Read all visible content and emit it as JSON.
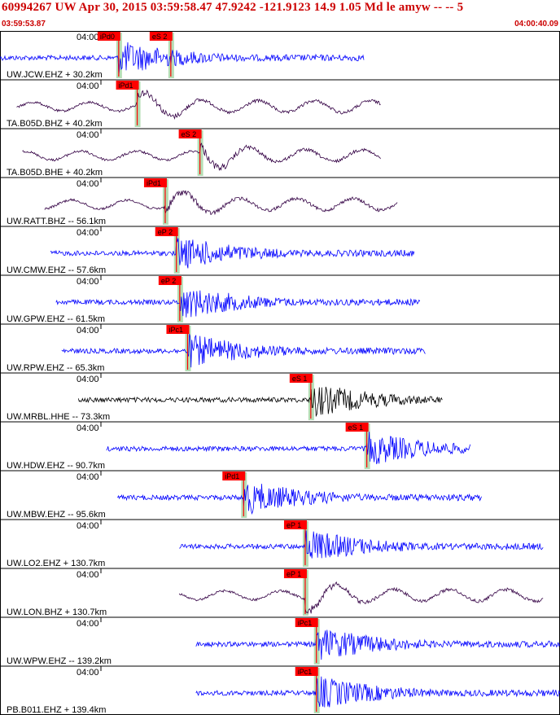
{
  "header": {
    "title": "60994267 UW Apr 30, 2015 03:59:58.47    47.9242 -121.9123 14.9 1.05 Md le amyw -- --    5",
    "start_time": "03:59:53.87",
    "end_time": "04:00:40.09"
  },
  "colors": {
    "header_red": "#cc0000",
    "pick_red": "#ff0000",
    "trace_blue": "#0000ff",
    "trace_purple": "#330044",
    "trace_black": "#000000",
    "window_green": "#a8d8a8"
  },
  "chart_data": {
    "type": "line",
    "title": "60994267 UW Apr 30, 2015 03:59:58.47    47.9242 -121.9123 14.9 1.05 Md le amyw -- --    5",
    "x_range": [
      "03:59:53.87",
      "04:00:40.09"
    ],
    "tick_label": "04:00",
    "traces": [
      {
        "label": "UW.JCW.EHZ + 30.2km",
        "color": "blue",
        "picks": [
          {
            "text": "iPd0",
            "t": 0.212
          },
          {
            "text": "eS 2",
            "t": 0.305
          }
        ],
        "data_span": [
          0.0,
          0.65
        ]
      },
      {
        "label": "TA.B05D.BHZ + 40.2km",
        "color": "purple",
        "picks": [
          {
            "text": "iPd1",
            "t": 0.245
          }
        ],
        "data_span": [
          0.03,
          0.68
        ]
      },
      {
        "label": "TA.B05D.BHE + 40.2km",
        "color": "purple",
        "picks": [
          {
            "text": "eS 2",
            "t": 0.357
          }
        ],
        "data_span": [
          0.04,
          0.68
        ]
      },
      {
        "label": "UW.RATT.BHZ -- 56.1km",
        "color": "purple",
        "picks": [
          {
            "text": "iPd1",
            "t": 0.295
          }
        ],
        "data_span": [
          0.08,
          0.71
        ]
      },
      {
        "label": "UW.CMW.EHZ -- 57.6km",
        "color": "blue",
        "picks": [
          {
            "text": "eP 2",
            "t": 0.315
          }
        ],
        "data_span": [
          0.09,
          0.74
        ]
      },
      {
        "label": "UW.GPW.EHZ -- 61.5km",
        "color": "blue",
        "picks": [
          {
            "text": "eP 2",
            "t": 0.321
          }
        ],
        "data_span": [
          0.1,
          0.75
        ]
      },
      {
        "label": "UW.RPW.EHZ -- 65.3km",
        "color": "blue",
        "picks": [
          {
            "text": "iPc1",
            "t": 0.335
          }
        ],
        "data_span": [
          0.11,
          0.76
        ]
      },
      {
        "label": "UW.MRBL.HHE -- 73.3km",
        "color": "black",
        "picks": [
          {
            "text": "eS 1",
            "t": 0.555
          }
        ],
        "data_span": [
          0.14,
          0.79
        ]
      },
      {
        "label": "UW.HDW.EHZ -- 90.7km",
        "color": "blue",
        "picks": [
          {
            "text": "eS 1",
            "t": 0.655
          }
        ],
        "data_span": [
          0.19,
          0.84
        ]
      },
      {
        "label": "UW.MBW.EHZ -- 95.6km",
        "color": "blue",
        "picks": [
          {
            "text": "iPd1",
            "t": 0.435
          }
        ],
        "data_span": [
          0.21,
          0.86
        ]
      },
      {
        "label": "UW.LO2.EHZ + 130.7km",
        "color": "blue",
        "picks": [
          {
            "text": "eP 1",
            "t": 0.545
          }
        ],
        "data_span": [
          0.32,
          0.97
        ]
      },
      {
        "label": "UW.LON.BHZ + 130.7km",
        "color": "purple",
        "picks": [
          {
            "text": "eP 1",
            "t": 0.545
          }
        ],
        "data_span": [
          0.32,
          0.97
        ]
      },
      {
        "label": "UW.WPW.EHZ -- 139.2km",
        "color": "blue",
        "picks": [
          {
            "text": "iPc1",
            "t": 0.565
          }
        ],
        "data_span": [
          0.35,
          1.0
        ]
      },
      {
        "label": "PB.B011.EHZ + 139.4km",
        "color": "blue",
        "picks": [
          {
            "text": "iPc1",
            "t": 0.565
          }
        ],
        "data_span": [
          0.35,
          1.0
        ]
      }
    ]
  }
}
